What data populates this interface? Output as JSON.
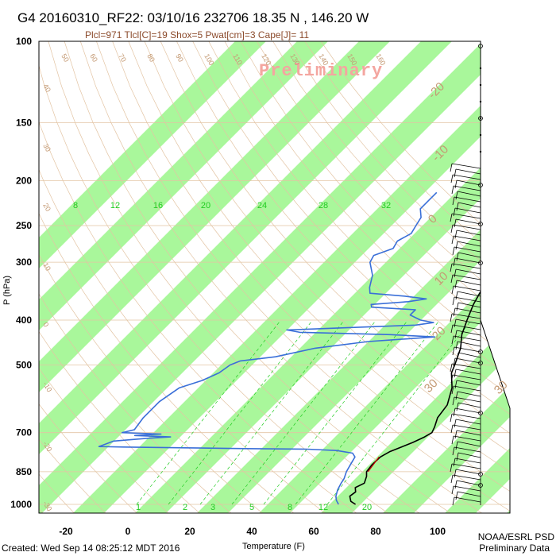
{
  "title": "G4 20160310_RF22: 03/10/16 232706  18.35 N , 146.20 W",
  "subtitle": "Plcl=971 Tlcl[C]=19 Shox=5 Pwat[cm]=3 Cape[J]= 11",
  "watermark": "Preliminary",
  "footer": {
    "created": "Created: Wed Sep 14 08:25:12 MDT 2016",
    "credit_line1": "NOAA/ESRL PSD",
    "credit_line2": "Preliminary Data"
  },
  "colors": {
    "temperature": "#000000",
    "dewpoint": "#3a6fd8",
    "parcel": "#cc0000",
    "green_band": "#a9f79b",
    "grid": "#e3c4a3",
    "dry_adiabat": "#e3c4a3",
    "moist_adiabat": "#22cc22",
    "mixing_ratio": "#22cc22"
  },
  "chart_data": {
    "type": "line",
    "chart_subtype": "skew-T log-P diagram",
    "xlabel": "Temperature (F)",
    "ylabel": "P (hPa)",
    "x_ticks": [
      "-20",
      "0",
      "20",
      "40",
      "60",
      "80",
      "100"
    ],
    "y_ticks": [
      "100",
      "150",
      "200",
      "250",
      "300",
      "400",
      "500",
      "700",
      "850",
      "1000"
    ],
    "xlim": [
      -28,
      100
    ],
    "ylim": [
      1000,
      100
    ],
    "y_scale": "log",
    "temperature_band_labels": [
      "-30",
      "-20",
      "-10",
      "0",
      "10",
      "20",
      "30"
    ],
    "mixing_ratio_labels_top": [
      "8",
      "12",
      "16",
      "20",
      "24",
      "28",
      "32"
    ],
    "mixing_ratio_labels_bottom": [
      "1",
      "2",
      "3",
      "5",
      "8",
      "12",
      "20"
    ],
    "dry_adiabat_labels": [
      "50",
      "60",
      "70",
      "80",
      "90",
      "100",
      "110",
      "120",
      "130",
      "140",
      "150",
      "160"
    ],
    "dry_adiabat_left_labels": [
      "40",
      "30",
      "20",
      "10",
      "0",
      "-10",
      "-20",
      "-30"
    ],
    "series": [
      {
        "name": "Temperature",
        "points": [
          [
            1000,
            73.5
          ],
          [
            985,
            71
          ],
          [
            960,
            69
          ],
          [
            940,
            69.5
          ],
          [
            920,
            68
          ],
          [
            900,
            69.5
          ],
          [
            870,
            68
          ],
          [
            850,
            66.5
          ],
          [
            820,
            66
          ],
          [
            790,
            66.2
          ],
          [
            770,
            67.5
          ],
          [
            750,
            70
          ],
          [
            735,
            72
          ],
          [
            715,
            74
          ],
          [
            700,
            75
          ],
          [
            680,
            74
          ],
          [
            650,
            72
          ],
          [
            610,
            71
          ],
          [
            560,
            67
          ],
          [
            520,
            62
          ],
          [
            500,
            60.5
          ],
          [
            460,
            57
          ],
          [
            430,
            53
          ],
          [
            400,
            50
          ],
          [
            370,
            47
          ],
          [
            345,
            45
          ],
          [
            320,
            43.5
          ],
          [
            300,
            40.5
          ],
          [
            280,
            39
          ],
          [
            260,
            36
          ],
          [
            240,
            33
          ],
          [
            220,
            31
          ],
          [
            210,
            30
          ],
          [
            200,
            28.5
          ],
          [
            190,
            27
          ]
        ]
      },
      {
        "name": "Dewpoint",
        "points": [
          [
            1000,
            68
          ],
          [
            980,
            66
          ],
          [
            960,
            64.5
          ],
          [
            930,
            63
          ],
          [
            900,
            62
          ],
          [
            880,
            61.5
          ],
          [
            850,
            60
          ],
          [
            820,
            59
          ],
          [
            790,
            58
          ],
          [
            775,
            56
          ],
          [
            765,
            50
          ],
          [
            760,
            40
          ],
          [
            758,
            20
          ],
          [
            755,
            0
          ],
          [
            752,
            -20
          ],
          [
            750,
            -28
          ],
          [
            730,
            -25
          ],
          [
            720,
            -15
          ],
          [
            715,
            -8
          ],
          [
            710,
            -20
          ],
          [
            705,
            -12
          ],
          [
            700,
            -25
          ],
          [
            690,
            -22
          ],
          [
            650,
            -23
          ],
          [
            600,
            -23
          ],
          [
            560,
            -21
          ],
          [
            540,
            -16
          ],
          [
            520,
            -13
          ],
          [
            500,
            -12
          ],
          [
            490,
            -10
          ],
          [
            480,
            0
          ],
          [
            460,
            10
          ],
          [
            445,
            25
          ],
          [
            440,
            35
          ],
          [
            435,
            45
          ],
          [
            430,
            30
          ],
          [
            425,
            0
          ],
          [
            420,
            -5
          ],
          [
            410,
            35
          ],
          [
            405,
            40
          ],
          [
            400,
            35
          ],
          [
            390,
            30
          ],
          [
            380,
            30
          ],
          [
            375,
            15
          ],
          [
            370,
            14
          ],
          [
            365,
            25
          ],
          [
            360,
            30
          ],
          [
            355,
            22
          ],
          [
            350,
            10
          ],
          [
            340,
            8
          ],
          [
            320,
            5
          ],
          [
            300,
            0
          ],
          [
            290,
            -1
          ],
          [
            280,
            3
          ],
          [
            270,
            2
          ],
          [
            260,
            4
          ],
          [
            250,
            3
          ],
          [
            240,
            2
          ],
          [
            230,
            -1
          ],
          [
            220,
            -1
          ],
          [
            212,
            -1
          ]
        ]
      },
      {
        "name": "Parcel",
        "points": [
          [
            850,
            67
          ],
          [
            830,
            66.6
          ],
          [
            810,
            66.2
          ],
          [
            790,
            65.8
          ]
        ]
      }
    ]
  }
}
